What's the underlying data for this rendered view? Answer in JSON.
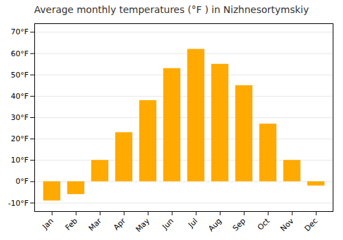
{
  "chart_data": {
    "type": "bar",
    "title": "Average monthly temperatures (°F ) in Nizhnesortymskiy",
    "categories": [
      "Jan",
      "Feb",
      "Mar",
      "Apr",
      "May",
      "Jun",
      "Jul",
      "Aug",
      "Sep",
      "Oct",
      "Nov",
      "Dec"
    ],
    "values": [
      -9,
      -6,
      10,
      23,
      38,
      53,
      62,
      55,
      45,
      27,
      10,
      -2
    ],
    "color": "#FFAA00",
    "ylim": [
      -14,
      74
    ],
    "yticks": [
      {
        "value": -10,
        "label": "-10°F"
      },
      {
        "value": 0,
        "label": "0°F"
      },
      {
        "value": 10,
        "label": "10°F"
      },
      {
        "value": 20,
        "label": "20°F"
      },
      {
        "value": 30,
        "label": "30°F"
      },
      {
        "value": 40,
        "label": "40°F"
      },
      {
        "value": 50,
        "label": "50°F"
      },
      {
        "value": 60,
        "label": "60°F"
      },
      {
        "value": 70,
        "label": "70°F"
      }
    ],
    "grid": true
  }
}
